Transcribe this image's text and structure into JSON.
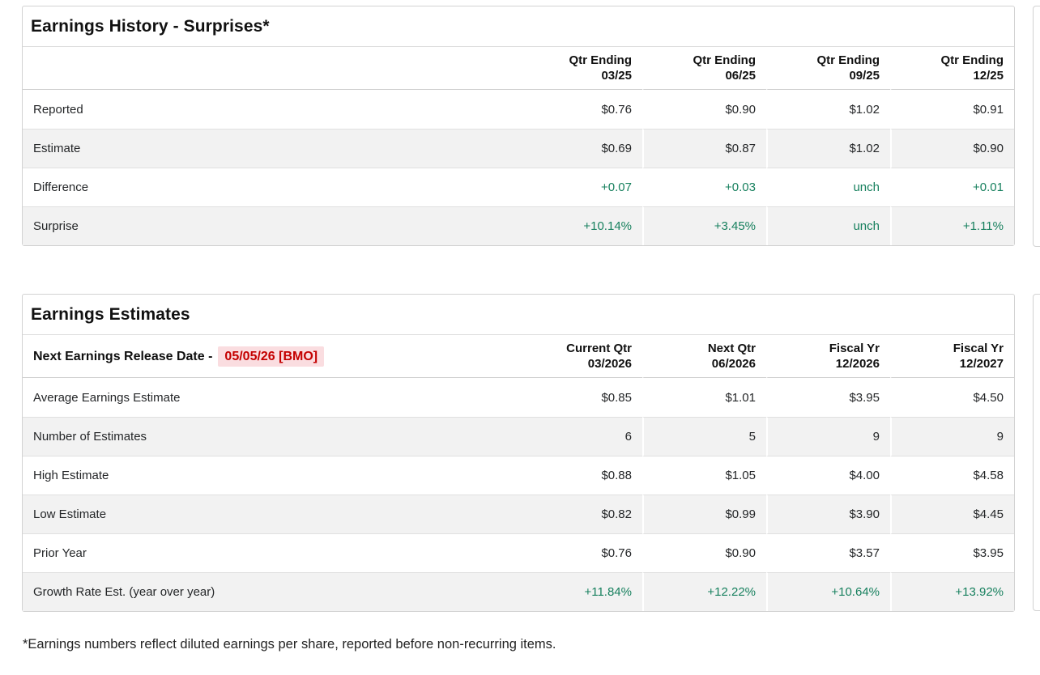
{
  "colors": {
    "positive": "#17805e",
    "alert_text": "#c40000",
    "alert_bg": "#fadde0",
    "zebra": "#f2f2f2",
    "rowline": "#e0e0e0",
    "border": "#d2d2d2"
  },
  "history": {
    "title": "Earnings History - Surprises*",
    "columns": [
      {
        "label": "Qtr Ending",
        "sub": "03/25"
      },
      {
        "label": "Qtr Ending",
        "sub": "06/25"
      },
      {
        "label": "Qtr Ending",
        "sub": "09/25"
      },
      {
        "label": "Qtr Ending",
        "sub": "12/25"
      }
    ],
    "rows": [
      {
        "label": "Reported",
        "values": [
          "$0.76",
          "$0.90",
          "$1.02",
          "$0.91"
        ]
      },
      {
        "label": "Estimate",
        "values": [
          "$0.69",
          "$0.87",
          "$1.02",
          "$0.90"
        ]
      },
      {
        "label": "Difference",
        "values": [
          "+0.07",
          "+0.03",
          "unch",
          "+0.01"
        ]
      },
      {
        "label": "Surprise",
        "values": [
          "+10.14%",
          "+3.45%",
          "unch",
          "+1.11%"
        ]
      }
    ]
  },
  "estimates": {
    "title": "Earnings Estimates",
    "release_label": "Next Earnings Release Date -",
    "release_date": "05/05/26 [BMO]",
    "columns": [
      {
        "label": "Current Qtr",
        "sub": "03/2026"
      },
      {
        "label": "Next Qtr",
        "sub": "06/2026"
      },
      {
        "label": "Fiscal Yr",
        "sub": "12/2026"
      },
      {
        "label": "Fiscal Yr",
        "sub": "12/2027"
      }
    ],
    "rows": [
      {
        "label": "Average Earnings Estimate",
        "values": [
          "$0.85",
          "$1.01",
          "$3.95",
          "$4.50"
        ]
      },
      {
        "label": "Number of Estimates",
        "values": [
          "6",
          "5",
          "9",
          "9"
        ]
      },
      {
        "label": "High Estimate",
        "values": [
          "$0.88",
          "$1.05",
          "$4.00",
          "$4.58"
        ]
      },
      {
        "label": "Low Estimate",
        "values": [
          "$0.82",
          "$0.99",
          "$3.90",
          "$4.45"
        ]
      },
      {
        "label": "Prior Year",
        "values": [
          "$0.76",
          "$0.90",
          "$3.57",
          "$3.95"
        ]
      },
      {
        "label": "Growth Rate Est. (year over year)",
        "values": [
          "+11.84%",
          "+12.22%",
          "+10.64%",
          "+13.92%"
        ]
      }
    ]
  },
  "footnote": "*Earnings numbers reflect diluted earnings per share, reported before non-recurring items."
}
